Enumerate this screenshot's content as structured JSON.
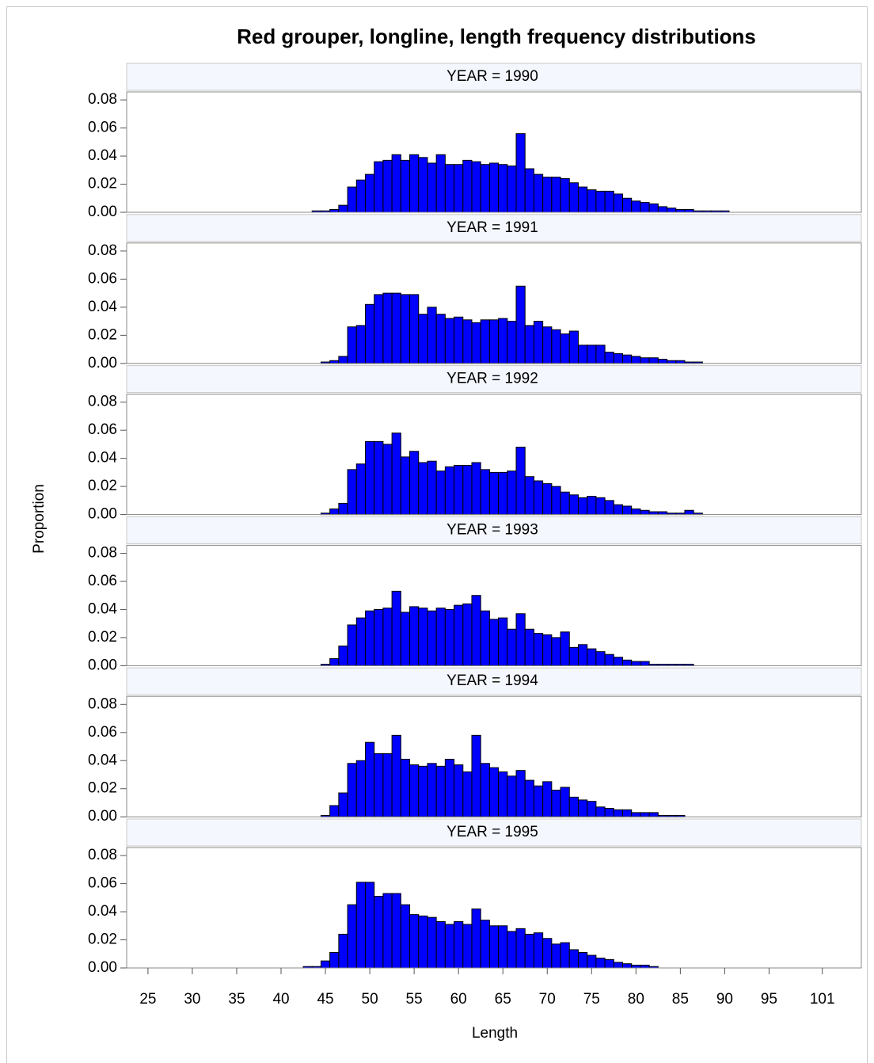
{
  "chart_data": {
    "type": "histogram",
    "title": "Red grouper, longline, length frequency distributions",
    "xlabel": "Length",
    "ylabel": "Proportion",
    "color": "#0000ff",
    "bins": [
      42.5,
      43.5,
      44.5,
      45.5,
      46.5,
      47.5,
      48.5,
      49.5,
      50.5,
      51.5,
      52.5,
      53.5,
      54.5,
      55.5,
      56.5,
      57.5,
      58.5,
      59.5,
      60.5,
      61.5,
      62.5,
      63.5,
      64.5,
      65.5,
      66.5,
      67.5,
      68.5,
      69.5,
      70.5,
      71.5,
      72.5,
      73.5,
      74.5,
      75.5,
      76.5,
      77.5,
      78.5,
      79.5,
      80.5,
      81.5,
      82.5,
      83.5,
      84.5,
      85.5,
      86.5,
      87.5,
      88.5,
      89.5,
      90.5,
      91.5
    ],
    "xlim": [
      22.6,
      105.4
    ],
    "xticks": [
      25,
      30,
      35,
      40,
      45,
      50,
      55,
      60,
      65,
      70,
      75,
      80,
      85,
      90,
      95,
      101
    ],
    "ylim": [
      0,
      0.0857
    ],
    "yticks": [
      {
        "value": 0,
        "label": "0.00"
      },
      {
        "value": 0.02,
        "label": "0.02"
      },
      {
        "value": 0.04,
        "label": "0.04"
      },
      {
        "value": 0.06,
        "label": "0.06"
      },
      {
        "value": 0.08,
        "label": "0.08"
      }
    ],
    "panels": [
      {
        "label": "YEAR = 1990",
        "values": [
          0,
          0.001,
          0.001,
          0.002,
          0.005,
          0.018,
          0.023,
          0.027,
          0.036,
          0.037,
          0.041,
          0.037,
          0.041,
          0.039,
          0.035,
          0.041,
          0.034,
          0.034,
          0.037,
          0.036,
          0.034,
          0.035,
          0.034,
          0.033,
          0.056,
          0.031,
          0.027,
          0.025,
          0.025,
          0.024,
          0.021,
          0.018,
          0.016,
          0.015,
          0.015,
          0.013,
          0.01,
          0.008,
          0.007,
          0.006,
          0.004,
          0.003,
          0.002,
          0.002,
          0.001,
          0.001,
          0.001,
          0.001,
          0
        ]
      },
      {
        "label": "YEAR = 1991",
        "values": [
          0,
          0,
          0.001,
          0.002,
          0.005,
          0.026,
          0.027,
          0.042,
          0.049,
          0.05,
          0.05,
          0.049,
          0.049,
          0.035,
          0.04,
          0.035,
          0.032,
          0.033,
          0.031,
          0.029,
          0.031,
          0.031,
          0.032,
          0.03,
          0.055,
          0.027,
          0.03,
          0.026,
          0.024,
          0.021,
          0.023,
          0.013,
          0.013,
          0.013,
          0.008,
          0.007,
          0.006,
          0.005,
          0.004,
          0.004,
          0.003,
          0.002,
          0.002,
          0.001,
          0.001,
          0,
          0,
          0,
          0
        ]
      },
      {
        "label": "YEAR = 1992",
        "values": [
          0,
          0,
          0.001,
          0.004,
          0.008,
          0.032,
          0.036,
          0.052,
          0.052,
          0.05,
          0.058,
          0.041,
          0.045,
          0.037,
          0.038,
          0.031,
          0.034,
          0.035,
          0.035,
          0.037,
          0.032,
          0.03,
          0.03,
          0.031,
          0.048,
          0.027,
          0.024,
          0.022,
          0.02,
          0.016,
          0.014,
          0.012,
          0.013,
          0.012,
          0.01,
          0.007,
          0.006,
          0.004,
          0.003,
          0.002,
          0.002,
          0.001,
          0.001,
          0.003,
          0.001,
          0,
          0,
          0,
          0
        ]
      },
      {
        "label": "YEAR = 1993",
        "values": [
          0,
          0,
          0.001,
          0.005,
          0.014,
          0.029,
          0.034,
          0.039,
          0.04,
          0.041,
          0.053,
          0.038,
          0.042,
          0.041,
          0.039,
          0.041,
          0.04,
          0.043,
          0.044,
          0.05,
          0.039,
          0.033,
          0.034,
          0.026,
          0.037,
          0.026,
          0.023,
          0.022,
          0.02,
          0.024,
          0.013,
          0.015,
          0.012,
          0.01,
          0.008,
          0.006,
          0.004,
          0.003,
          0.003,
          0.001,
          0.001,
          0.001,
          0.001,
          0.001,
          0,
          0,
          0,
          0,
          0
        ]
      },
      {
        "label": "YEAR = 1994",
        "values": [
          0,
          0,
          0.001,
          0.008,
          0.017,
          0.038,
          0.04,
          0.053,
          0.045,
          0.045,
          0.058,
          0.041,
          0.037,
          0.036,
          0.038,
          0.036,
          0.041,
          0.037,
          0.032,
          0.058,
          0.038,
          0.035,
          0.032,
          0.029,
          0.033,
          0.026,
          0.022,
          0.025,
          0.019,
          0.021,
          0.014,
          0.012,
          0.011,
          0.007,
          0.006,
          0.005,
          0.005,
          0.003,
          0.003,
          0.003,
          0.001,
          0.001,
          0.001,
          0,
          0,
          0,
          0,
          0,
          0
        ]
      },
      {
        "label": "YEAR = 1995",
        "values": [
          0.001,
          0.001,
          0.005,
          0.011,
          0.024,
          0.045,
          0.061,
          0.061,
          0.051,
          0.053,
          0.053,
          0.045,
          0.038,
          0.037,
          0.036,
          0.033,
          0.031,
          0.033,
          0.031,
          0.042,
          0.034,
          0.03,
          0.03,
          0.026,
          0.028,
          0.024,
          0.025,
          0.021,
          0.017,
          0.018,
          0.013,
          0.011,
          0.009,
          0.007,
          0.006,
          0.004,
          0.003,
          0.002,
          0.002,
          0.001,
          0,
          0,
          0,
          0,
          0,
          0,
          0,
          0,
          0
        ]
      }
    ]
  }
}
